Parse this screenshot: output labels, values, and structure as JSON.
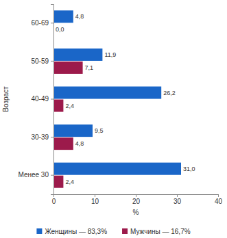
{
  "chart_data": {
    "type": "bar",
    "orientation": "horizontal",
    "x_label": "%",
    "y_label": "Возраст",
    "categories": [
      "60-69",
      "50-59",
      "40-49",
      "30-39",
      "Менее 30"
    ],
    "series": [
      {
        "name": "Женщины — 83,3%",
        "color": "#1a66c8",
        "values": [
          4.8,
          11.9,
          26.2,
          9.5,
          31.0
        ],
        "value_labels": [
          "4,8",
          "11,9",
          "26,2",
          "9,5",
          "31,0"
        ]
      },
      {
        "name": "Мужчины — 16,7%",
        "color": "#9c1a4b",
        "values": [
          0.0,
          7.1,
          2.4,
          4.8,
          2.4
        ],
        "value_labels": [
          "0,0",
          "7,1",
          "2,4",
          "4,8",
          "2,4"
        ]
      }
    ],
    "xlim": [
      0,
      40
    ],
    "xticks": [
      0,
      10,
      20,
      30,
      40
    ],
    "grid": false,
    "data_labels": true,
    "legend": "bottom"
  }
}
